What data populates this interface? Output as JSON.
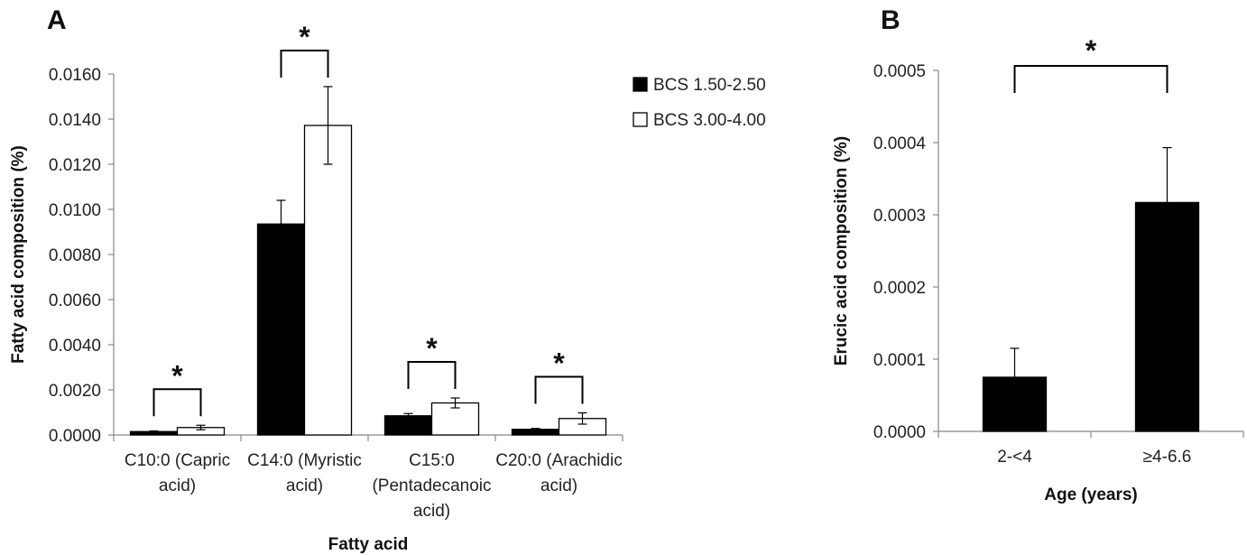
{
  "chart_data": [
    {
      "panel": "A",
      "type": "bar",
      "xlabel": "Fatty acid",
      "ylabel": "Fatty acid composition (%)",
      "ylim": [
        0,
        0.016
      ],
      "yticks": [
        "0.0000",
        "0.0020",
        "0.0040",
        "0.0060",
        "0.0080",
        "0.0100",
        "0.0120",
        "0.0140",
        "0.0160"
      ],
      "categories": [
        [
          "C10:0 (Capric",
          "acid)"
        ],
        [
          "C14:0 (Myristic",
          "acid)"
        ],
        [
          "C15:0",
          "(Pentadecanoic",
          "acid)"
        ],
        [
          "C20:0 (Arachidic",
          "acid)"
        ]
      ],
      "series": [
        {
          "name": "BCS 1.50-2.50",
          "color": "#000000",
          "values": [
            0.00015,
            0.00935,
            0.00085,
            0.00025
          ],
          "errors": [
            3e-05,
            0.00105,
            0.0001,
            4e-05
          ]
        },
        {
          "name": "BCS 3.00-4.00",
          "color": "#ffffff",
          "values": [
            0.00033,
            0.01372,
            0.00142,
            0.00073
          ],
          "errors": [
            0.0001,
            0.00172,
            0.00022,
            0.00025
          ]
        }
      ],
      "significance": [
        {
          "category": 0,
          "label": "*"
        },
        {
          "category": 1,
          "label": "*"
        },
        {
          "category": 2,
          "label": "*"
        },
        {
          "category": 3,
          "label": "*"
        }
      ],
      "legend": "top-right"
    },
    {
      "panel": "B",
      "type": "bar",
      "xlabel": "Age (years)",
      "ylabel": "Erucic acid composition (%)",
      "ylim": [
        0,
        0.0005
      ],
      "yticks": [
        "0.0000",
        "0.0001",
        "0.0002",
        "0.0003",
        "0.0004",
        "0.0005"
      ],
      "categories": [
        "2-<4",
        "≥4-6.6"
      ],
      "values": [
        7.5e-05,
        0.000317
      ],
      "errors": [
        4e-05,
        7.6e-05
      ],
      "color": "#000000",
      "significance": [
        {
          "between": [
            0,
            1
          ],
          "label": "*"
        }
      ]
    }
  ]
}
